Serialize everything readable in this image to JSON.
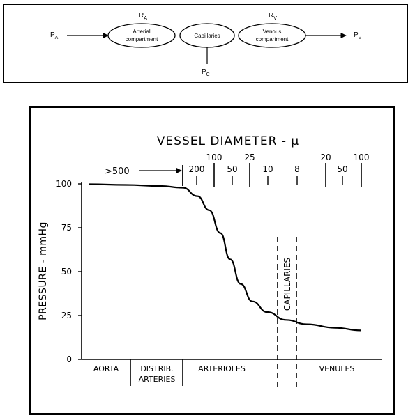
{
  "flow_diagram": {
    "inlet": {
      "main": "P",
      "sub": "A"
    },
    "outlet": {
      "main": "P",
      "sub": "V"
    },
    "resist_a": {
      "main": "R",
      "sub": "A"
    },
    "resist_v": {
      "main": "R",
      "sub": "V"
    },
    "cap_pressure": {
      "main": "P",
      "sub": "C"
    },
    "nodes": {
      "arterial": [
        "Arterial",
        "compartment"
      ],
      "capillaries": "Capillaries",
      "venous": [
        "Venous",
        "compartment"
      ]
    }
  },
  "chart_data": {
    "type": "line",
    "title": "VESSEL DIAMETER - µ",
    "ylabel": "PRESSURE - mmHg",
    "ylim": [
      0,
      100
    ],
    "yticks": [
      "0",
      "25",
      "50",
      "75",
      "100"
    ],
    "diameter_upper_ticks": [
      "100",
      "25",
      "20",
      "100"
    ],
    "diameter_lower_ticks": [
      "200",
      "50",
      "10",
      "8",
      "50"
    ],
    "aorta_diameter": ">500",
    "regions": [
      "AORTA",
      "DISTRIB. ARTERIES",
      "ARTERIOLES",
      "VENULES"
    ],
    "capillaries_band_label": "CAPILLARIES",
    "series": [
      {
        "values": [
          [
            "AORTA start",
            100
          ],
          [
            "AORTA end",
            99.3
          ],
          [
            "DISTRIB. ARTERIES end",
            98.9
          ],
          [
            "ARTERIOLES early",
            85
          ],
          [
            "ARTERIOLES mid",
            60
          ],
          [
            "ARTERIOLES end",
            28
          ],
          [
            "CAPILLARIES",
            22
          ],
          [
            "VENULES end",
            16
          ]
        ]
      }
    ],
    "grid": false
  }
}
